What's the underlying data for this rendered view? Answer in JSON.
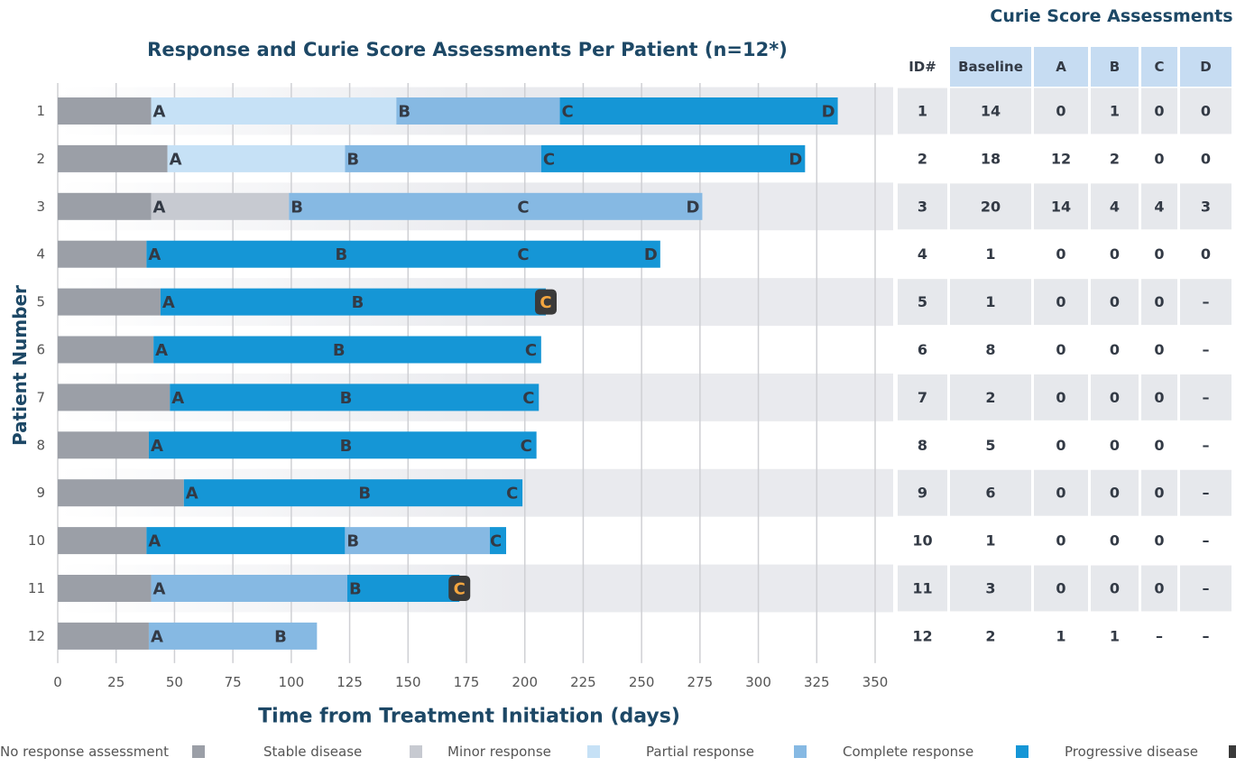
{
  "chart_data": {
    "type": "swimmer",
    "title": "Response and Curie Score Assessments Per Patient (n=12*)",
    "x_label": "Time from Treatment Initiation (days)",
    "y_label": "Patient Number",
    "xlim": [
      0,
      350
    ],
    "xticks": [
      0,
      25,
      50,
      75,
      100,
      125,
      150,
      175,
      200,
      225,
      250,
      275,
      300,
      325,
      350
    ],
    "grid": true,
    "legend": [
      {
        "name": "No response assessment",
        "color": "#9b9fa7"
      },
      {
        "name": "Stable disease",
        "color": "#c7cad1"
      },
      {
        "name": "Minor response",
        "color": "#c6e1f6"
      },
      {
        "name": "Partial response",
        "color": "#86b9e3"
      },
      {
        "name": "Complete response",
        "color": "#1596d6"
      },
      {
        "name": "Progressive disease",
        "color": "#3a3a3a"
      }
    ],
    "patients": [
      {
        "label": "1",
        "segments": [
          {
            "r": 0,
            "start": 0,
            "end": 40
          },
          {
            "r": 2,
            "start": 40,
            "end": 145
          },
          {
            "r": 3,
            "start": 145,
            "end": 215
          },
          {
            "r": 4,
            "start": 215,
            "end": 334
          }
        ],
        "assessments": [
          {
            "label": "A",
            "day": 40
          },
          {
            "label": "B",
            "day": 145
          },
          {
            "label": "C",
            "day": 215
          },
          {
            "label": "D",
            "day": 334
          }
        ]
      },
      {
        "label": "2",
        "segments": [
          {
            "r": 0,
            "start": 0,
            "end": 47
          },
          {
            "r": 2,
            "start": 47,
            "end": 123
          },
          {
            "r": 3,
            "start": 123,
            "end": 207
          },
          {
            "r": 4,
            "start": 207,
            "end": 320
          }
        ],
        "assessments": [
          {
            "label": "A",
            "day": 47
          },
          {
            "label": "B",
            "day": 123
          },
          {
            "label": "C",
            "day": 207
          },
          {
            "label": "D",
            "day": 320
          }
        ]
      },
      {
        "label": "3",
        "segments": [
          {
            "r": 0,
            "start": 0,
            "end": 40
          },
          {
            "r": 1,
            "start": 40,
            "end": 99
          },
          {
            "r": 3,
            "start": 99,
            "end": 276
          }
        ],
        "assessments": [
          {
            "label": "A",
            "day": 40
          },
          {
            "label": "B",
            "day": 99
          },
          {
            "label": "C",
            "day": 196
          },
          {
            "label": "D",
            "day": 276
          }
        ]
      },
      {
        "label": "4",
        "segments": [
          {
            "r": 0,
            "start": 0,
            "end": 38
          },
          {
            "r": 4,
            "start": 38,
            "end": 258
          }
        ],
        "assessments": [
          {
            "label": "A",
            "day": 38
          },
          {
            "label": "B",
            "day": 118
          },
          {
            "label": "C",
            "day": 196
          },
          {
            "label": "D",
            "day": 258
          }
        ]
      },
      {
        "label": "5",
        "segments": [
          {
            "r": 0,
            "start": 0,
            "end": 44
          },
          {
            "r": 4,
            "start": 44,
            "end": 209
          }
        ],
        "assessments": [
          {
            "label": "A",
            "day": 44
          },
          {
            "label": "B",
            "day": 125
          },
          {
            "label": "C",
            "day": 209,
            "r": 5
          }
        ]
      },
      {
        "label": "6",
        "segments": [
          {
            "r": 0,
            "start": 0,
            "end": 41
          },
          {
            "r": 4,
            "start": 41,
            "end": 207
          }
        ],
        "assessments": [
          {
            "label": "A",
            "day": 41
          },
          {
            "label": "B",
            "day": 117
          },
          {
            "label": "C",
            "day": 207
          }
        ]
      },
      {
        "label": "7",
        "segments": [
          {
            "r": 0,
            "start": 0,
            "end": 48
          },
          {
            "r": 4,
            "start": 48,
            "end": 206
          }
        ],
        "assessments": [
          {
            "label": "A",
            "day": 48
          },
          {
            "label": "B",
            "day": 120
          },
          {
            "label": "C",
            "day": 206
          }
        ]
      },
      {
        "label": "8",
        "segments": [
          {
            "r": 0,
            "start": 0,
            "end": 39
          },
          {
            "r": 4,
            "start": 39,
            "end": 205
          }
        ],
        "assessments": [
          {
            "label": "A",
            "day": 39
          },
          {
            "label": "B",
            "day": 120
          },
          {
            "label": "C",
            "day": 205
          }
        ]
      },
      {
        "label": "9",
        "segments": [
          {
            "r": 0,
            "start": 0,
            "end": 54
          },
          {
            "r": 4,
            "start": 54,
            "end": 199
          }
        ],
        "assessments": [
          {
            "label": "A",
            "day": 54
          },
          {
            "label": "B",
            "day": 128
          },
          {
            "label": "C",
            "day": 199
          }
        ]
      },
      {
        "label": "10",
        "segments": [
          {
            "r": 0,
            "start": 0,
            "end": 38
          },
          {
            "r": 4,
            "start": 38,
            "end": 123
          },
          {
            "r": 3,
            "start": 123,
            "end": 185
          },
          {
            "r": 4,
            "start": 185,
            "end": 192
          }
        ],
        "assessments": [
          {
            "label": "A",
            "day": 38
          },
          {
            "label": "B",
            "day": 123
          },
          {
            "label": "C",
            "day": 185
          }
        ]
      },
      {
        "label": "11",
        "segments": [
          {
            "r": 0,
            "start": 0,
            "end": 40
          },
          {
            "r": 3,
            "start": 40,
            "end": 124
          },
          {
            "r": 4,
            "start": 124,
            "end": 172
          }
        ],
        "assessments": [
          {
            "label": "A",
            "day": 40
          },
          {
            "label": "B",
            "day": 124
          },
          {
            "label": "C",
            "day": 172,
            "r": 5
          }
        ]
      },
      {
        "label": "12",
        "segments": [
          {
            "r": 0,
            "start": 0,
            "end": 39
          },
          {
            "r": 3,
            "start": 39,
            "end": 111
          }
        ],
        "assessments": [
          {
            "label": "A",
            "day": 39
          },
          {
            "label": "B",
            "day": 92
          }
        ]
      }
    ]
  },
  "table": {
    "title": "Curie Score Assessments",
    "header": [
      "ID#",
      "Baseline",
      "A",
      "B",
      "C",
      "D"
    ],
    "rows": [
      [
        1,
        14,
        0,
        1,
        0,
        0
      ],
      [
        2,
        18,
        12,
        2,
        0,
        0
      ],
      [
        3,
        20,
        14,
        4,
        4,
        3
      ],
      [
        4,
        1,
        0,
        0,
        0,
        0
      ],
      [
        5,
        1,
        0,
        0,
        0,
        "–"
      ],
      [
        6,
        8,
        0,
        0,
        0,
        "–"
      ],
      [
        7,
        2,
        0,
        0,
        0,
        "–"
      ],
      [
        8,
        5,
        0,
        0,
        0,
        "–"
      ],
      [
        9,
        6,
        0,
        0,
        0,
        "–"
      ],
      [
        10,
        1,
        0,
        0,
        0,
        "–"
      ],
      [
        11,
        3,
        0,
        0,
        0,
        "–"
      ],
      [
        12,
        2,
        1,
        1,
        "–",
        "–"
      ]
    ]
  }
}
